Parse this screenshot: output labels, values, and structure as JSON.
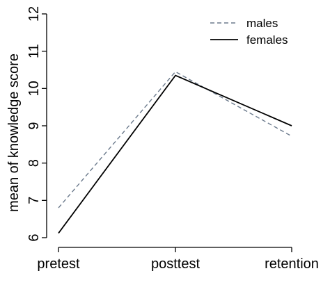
{
  "chart_data": {
    "type": "line",
    "categories": [
      "pretest",
      "posttest",
      "retention"
    ],
    "series": [
      {
        "name": "males",
        "values": [
          6.8,
          10.45,
          8.72
        ],
        "color": "#6b7a8c",
        "line_style": "dashed"
      },
      {
        "name": "females",
        "values": [
          6.12,
          10.35,
          9.0
        ],
        "color": "#000000",
        "line_style": "solid"
      }
    ],
    "ylabel": "mean of knowledge score",
    "xlabel": "",
    "title": "",
    "ylim": [
      6,
      12
    ],
    "yticks": [
      "6",
      "7",
      "8",
      "9",
      "10",
      "11",
      "12"
    ],
    "grid": false,
    "legend_position": "top-right"
  }
}
